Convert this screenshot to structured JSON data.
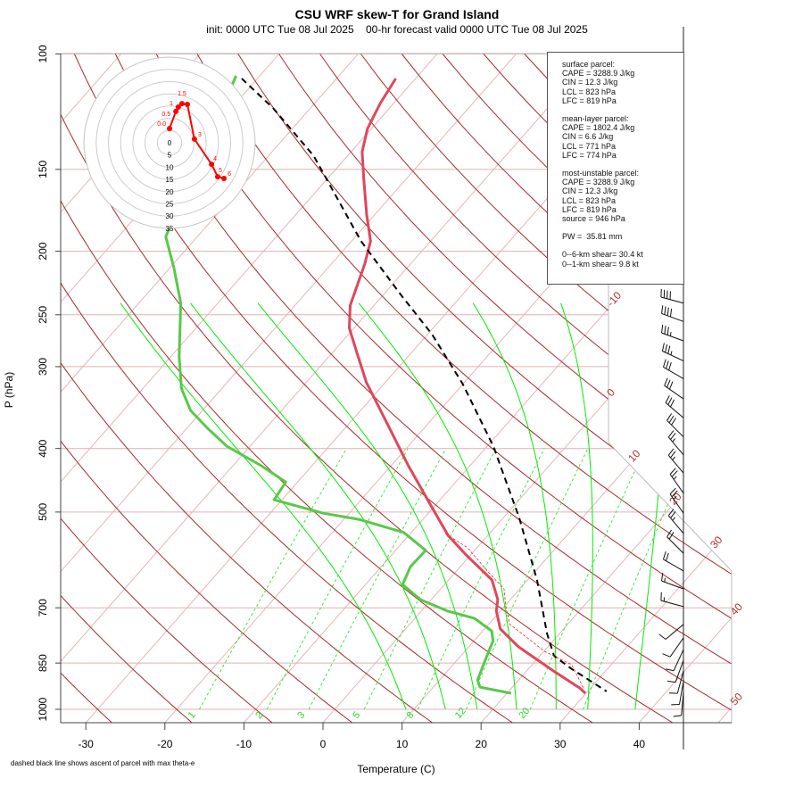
{
  "chart_data": {
    "type": "skew-t",
    "title": "CSU WRF skew-T for Grand Island",
    "subtitle": "init: 0000 UTC Tue 08 Jul 2025    00-hr forecast valid 0000 UTC Tue 08 Jul 2025",
    "xlabel": "Temperature (C)",
    "ylabel": "P (hPa)",
    "footnote": "dashed black line shows ascent of parcel with max theta-e",
    "y_scale": "log",
    "ylim": [
      1050,
      100
    ],
    "xlim_at_bottom": [
      -33,
      52
    ],
    "pressure_ticks": [
      100,
      150,
      200,
      250,
      300,
      400,
      500,
      700,
      850,
      1000
    ],
    "temperature_ticks": [
      -30,
      -20,
      -10,
      0,
      10,
      20,
      30,
      40
    ],
    "isotherm_labels": [
      {
        "T": -10,
        "text": "-10"
      },
      {
        "T": 0,
        "text": "0"
      },
      {
        "T": 10,
        "text": "10"
      },
      {
        "T": 20,
        "text": "20"
      },
      {
        "T": 30,
        "text": "30"
      },
      {
        "T": 40,
        "text": "40"
      },
      {
        "T": 50,
        "text": "50"
      }
    ],
    "isotherms": [
      -110,
      -100,
      -90,
      -80,
      -70,
      -60,
      -50,
      -40,
      -30,
      -20,
      -10,
      0,
      10,
      20,
      30,
      40,
      50
    ],
    "dry_adiabats_theta_c": [
      -30,
      -20,
      -10,
      0,
      10,
      20,
      30,
      40,
      50,
      60,
      70,
      80,
      90,
      100,
      110,
      120,
      130,
      140,
      150,
      160,
      170,
      180,
      190,
      200
    ],
    "moist_adiabats_t1000_c": [
      9,
      14,
      18,
      23,
      28,
      32,
      38
    ],
    "mixing_ratio_lines": [
      {
        "w": 1,
        "text": "1"
      },
      {
        "w": 2,
        "text": "2"
      },
      {
        "w": 3,
        "text": "3"
      },
      {
        "w": 5,
        "text": "5"
      },
      {
        "w": 8,
        "text": "8"
      },
      {
        "w": 12,
        "text": "12"
      },
      {
        "w": 20,
        "text": "20"
      },
      {
        "w": 30,
        "text": ""
      }
    ],
    "series": [
      {
        "id": "temperature",
        "color": "#e0475b",
        "points": [
          [
            109,
            -62.5
          ],
          [
            119,
            -61.7
          ],
          [
            130,
            -60.5
          ],
          [
            141,
            -58.6
          ],
          [
            155,
            -55.4
          ],
          [
            176,
            -51.0
          ],
          [
            193,
            -47.6
          ],
          [
            209,
            -45.8
          ],
          [
            242,
            -43.0
          ],
          [
            262,
            -40.6
          ],
          [
            285,
            -37.0
          ],
          [
            317,
            -32.4
          ],
          [
            367,
            -25.1
          ],
          [
            425,
            -17.8
          ],
          [
            488,
            -10.6
          ],
          [
            543,
            -5.0
          ],
          [
            581,
            -0.6
          ],
          [
            635,
            5.5
          ],
          [
            680,
            8.4
          ],
          [
            708,
            9.5
          ],
          [
            754,
            12.0
          ],
          [
            803,
            16.3
          ],
          [
            874,
            23.4
          ],
          [
            930,
            28.8
          ],
          [
            945,
            29.9
          ]
        ]
      },
      {
        "id": "dewpoint",
        "color": "#5ac84a",
        "points": [
          [
            108,
            -83.0
          ],
          [
            190,
            -74.0
          ],
          [
            212,
            -69.5
          ],
          [
            240,
            -64.7
          ],
          [
            290,
            -58.9
          ],
          [
            324,
            -55.1
          ],
          [
            350,
            -51.5
          ],
          [
            373,
            -47.3
          ],
          [
            397,
            -42.9
          ],
          [
            425,
            -36.4
          ],
          [
            450,
            -31.5
          ],
          [
            479,
            -31.0
          ],
          [
            502,
            -23.3
          ],
          [
            513,
            -18.1
          ],
          [
            537,
            -11.0
          ],
          [
            572,
            -6.2
          ],
          [
            606,
            -6.3
          ],
          [
            645,
            -5.3
          ],
          [
            680,
            -1.4
          ],
          [
            708,
            3.3
          ],
          [
            726,
            7.5
          ],
          [
            759,
            11.1
          ],
          [
            786,
            12.4
          ],
          [
            829,
            13.3
          ],
          [
            902,
            14.8
          ],
          [
            925,
            15.9
          ],
          [
            945,
            20.5
          ]
        ]
      },
      {
        "id": "parcel",
        "color": "#000000",
        "style": "dashed",
        "points": [
          [
            109,
            -82.0
          ],
          [
            121,
            -74.7
          ],
          [
            143,
            -64.3
          ],
          [
            193,
            -48.8
          ],
          [
            233,
            -37.8
          ],
          [
            268,
            -29.4
          ],
          [
            319,
            -20.0
          ],
          [
            397,
            -9.2
          ],
          [
            510,
            2.0
          ],
          [
            635,
            11.2
          ],
          [
            766,
            18.4
          ],
          [
            829,
            21.8
          ],
          [
            868,
            25.5
          ],
          [
            939,
            32.4
          ]
        ]
      },
      {
        "id": "virtual-temperature",
        "color": "#ff2020",
        "style": "thin-dashed",
        "points": [
          [
            540,
            -5.5
          ],
          [
            566,
            -1.3
          ],
          [
            615,
            3.9
          ],
          [
            655,
            8.0
          ],
          [
            697,
            10.2
          ],
          [
            742,
            12.7
          ],
          [
            778,
            16.4
          ],
          [
            816,
            20.1
          ],
          [
            855,
            25.0
          ],
          [
            930,
            29.2
          ]
        ]
      }
    ],
    "winds": [
      [
        105,
        290,
        35
      ],
      [
        115,
        285,
        35
      ],
      [
        126,
        280,
        40
      ],
      [
        137,
        280,
        40
      ],
      [
        150,
        285,
        50
      ],
      [
        162,
        285,
        50
      ],
      [
        176,
        285,
        50
      ],
      [
        190,
        285,
        50
      ],
      [
        205,
        285,
        50
      ],
      [
        222,
        285,
        40
      ],
      [
        240,
        285,
        40
      ],
      [
        256,
        290,
        40
      ],
      [
        274,
        290,
        35
      ],
      [
        294,
        295,
        35
      ],
      [
        313,
        300,
        30
      ],
      [
        336,
        305,
        30
      ],
      [
        359,
        310,
        30
      ],
      [
        384,
        315,
        30
      ],
      [
        409,
        320,
        25
      ],
      [
        436,
        320,
        25
      ],
      [
        468,
        325,
        25
      ],
      [
        502,
        325,
        25
      ],
      [
        539,
        320,
        25
      ],
      [
        578,
        315,
        20
      ],
      [
        615,
        300,
        20
      ],
      [
        655,
        290,
        15
      ],
      [
        697,
        285,
        15
      ],
      [
        742,
        230,
        10
      ],
      [
        778,
        215,
        10
      ],
      [
        811,
        205,
        10
      ],
      [
        842,
        200,
        10
      ],
      [
        874,
        195,
        10
      ],
      [
        907,
        190,
        10
      ],
      [
        942,
        185,
        10
      ]
    ],
    "hodograph": {
      "rings_kt": [
        5,
        10,
        15,
        20,
        25,
        30,
        35
      ],
      "ring_labels": [
        "0",
        "5",
        "10",
        "15",
        "20",
        "25",
        "30",
        "35"
      ],
      "color": "#ff0000",
      "points": [
        {
          "u": 0.0,
          "v": 5.8,
          "label": "0.0"
        },
        {
          "u": 2.6,
          "v": 12.8,
          "label": "0.5"
        },
        {
          "u": 3.6,
          "v": 14.6,
          "label": "1"
        },
        {
          "u": 5.1,
          "v": 16.0,
          "label": "1.5"
        },
        {
          "u": 7.3,
          "v": 15.7,
          "label": ""
        },
        {
          "u": 10.2,
          "v": 1.5,
          "label": "3"
        },
        {
          "u": 17.2,
          "v": -8.8,
          "label": "4"
        },
        {
          "u": 19.7,
          "v": -13.9,
          "label": "5"
        },
        {
          "u": 22.3,
          "v": -14.6,
          "label": "6"
        }
      ]
    },
    "colors": {
      "dry_adiabat": "#a52a2a",
      "isotherm": "#e8b4b4",
      "isobar": "#e0b0b0",
      "moist_adiabat": "#00ee00",
      "mixing_ratio": "#33ee33",
      "isotherm_label": "#b03030"
    }
  },
  "stats": {
    "surface": {
      "header": "surface parcel:",
      "cape": "CAPE = 3288.9 J/kg",
      "cin": "CIN = 12.3 J/kg",
      "lcl": "LCL = 823 hPa",
      "lfc": "LFC = 819 hPa"
    },
    "mean_layer": {
      "header": "mean-layer parcel:",
      "cape": "CAPE = 1802.4 J/kg",
      "cin": "CIN = 6.6 J/kg",
      "lcl": "LCL = 771 hPa",
      "lfc": "LFC = 774 hPa"
    },
    "most_unstable": {
      "header": "most-unstable parcel:",
      "cape": "CAPE = 3288.9 J/kg",
      "cin": "CIN = 12.3 J/kg",
      "lcl": "LCL = 823 hPa",
      "lfc": "LFC = 819 hPa",
      "source": "source = 946 hPa"
    },
    "pw": "PW =  35.81 mm",
    "shear_6km": "0--6-km shear= 30.4 kt",
    "shear_1km": "0--1-km shear= 9.8 kt"
  }
}
